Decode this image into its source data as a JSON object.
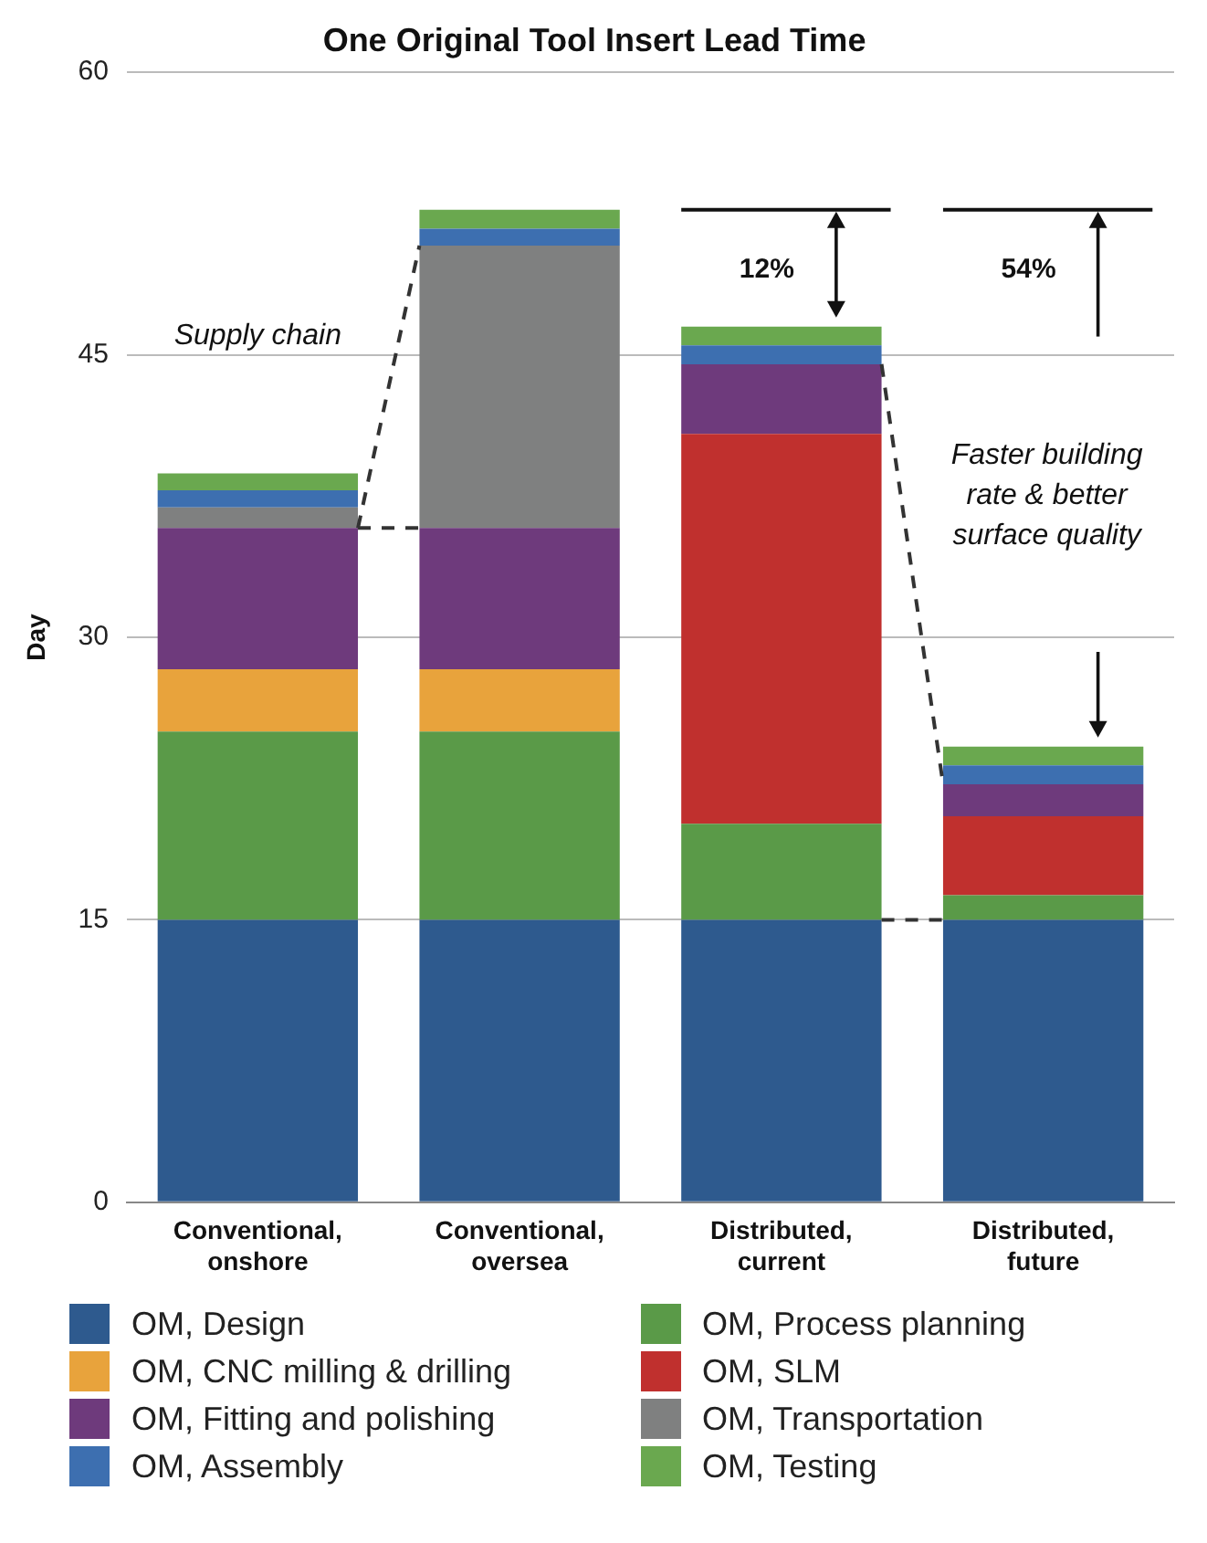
{
  "chart_data": {
    "type": "bar",
    "title": "One Original Tool Insert Lead Time",
    "ylabel": "Day",
    "categories": [
      "Conventional, onshore",
      "Conventional, oversea",
      "Distributed, current",
      "Distributed, future"
    ],
    "stacked": true,
    "series": [
      {
        "name": "OM, Design",
        "color": "#2e5a8e",
        "values": [
          15,
          15,
          15,
          15
        ]
      },
      {
        "name": "OM, Process planning",
        "color": "#5a9a48",
        "values": [
          10,
          10,
          5.1,
          1.3
        ]
      },
      {
        "name": "OM, CNC milling & drilling",
        "color": "#e8a33c",
        "values": [
          3.3,
          3.3,
          0,
          0
        ]
      },
      {
        "name": "OM, SLM",
        "color": "#c0302e",
        "values": [
          0,
          0,
          20.7,
          4.2
        ]
      },
      {
        "name": "OM, Fitting and polishing",
        "color": "#6e3a7c",
        "values": [
          7.5,
          7.5,
          3.7,
          1.7
        ]
      },
      {
        "name": "OM, Transportation",
        "color": "#7f8080",
        "values": [
          1.1,
          15,
          0,
          0
        ]
      },
      {
        "name": "OM, Assembly",
        "color": "#3d6fb0",
        "values": [
          0.9,
          0.9,
          1.0,
          1.0
        ]
      },
      {
        "name": "OM, Testing",
        "color": "#6aa84f",
        "values": [
          0.9,
          1.0,
          1.0,
          1.0
        ]
      }
    ],
    "ylim": [
      0,
      60
    ],
    "yticks": [
      0,
      15,
      30,
      45,
      60
    ],
    "grid": "y",
    "legend": "bottom",
    "annotations": [
      "Supply chain",
      "12%",
      "54%",
      "Faster building rate & better surface quality"
    ]
  }
}
